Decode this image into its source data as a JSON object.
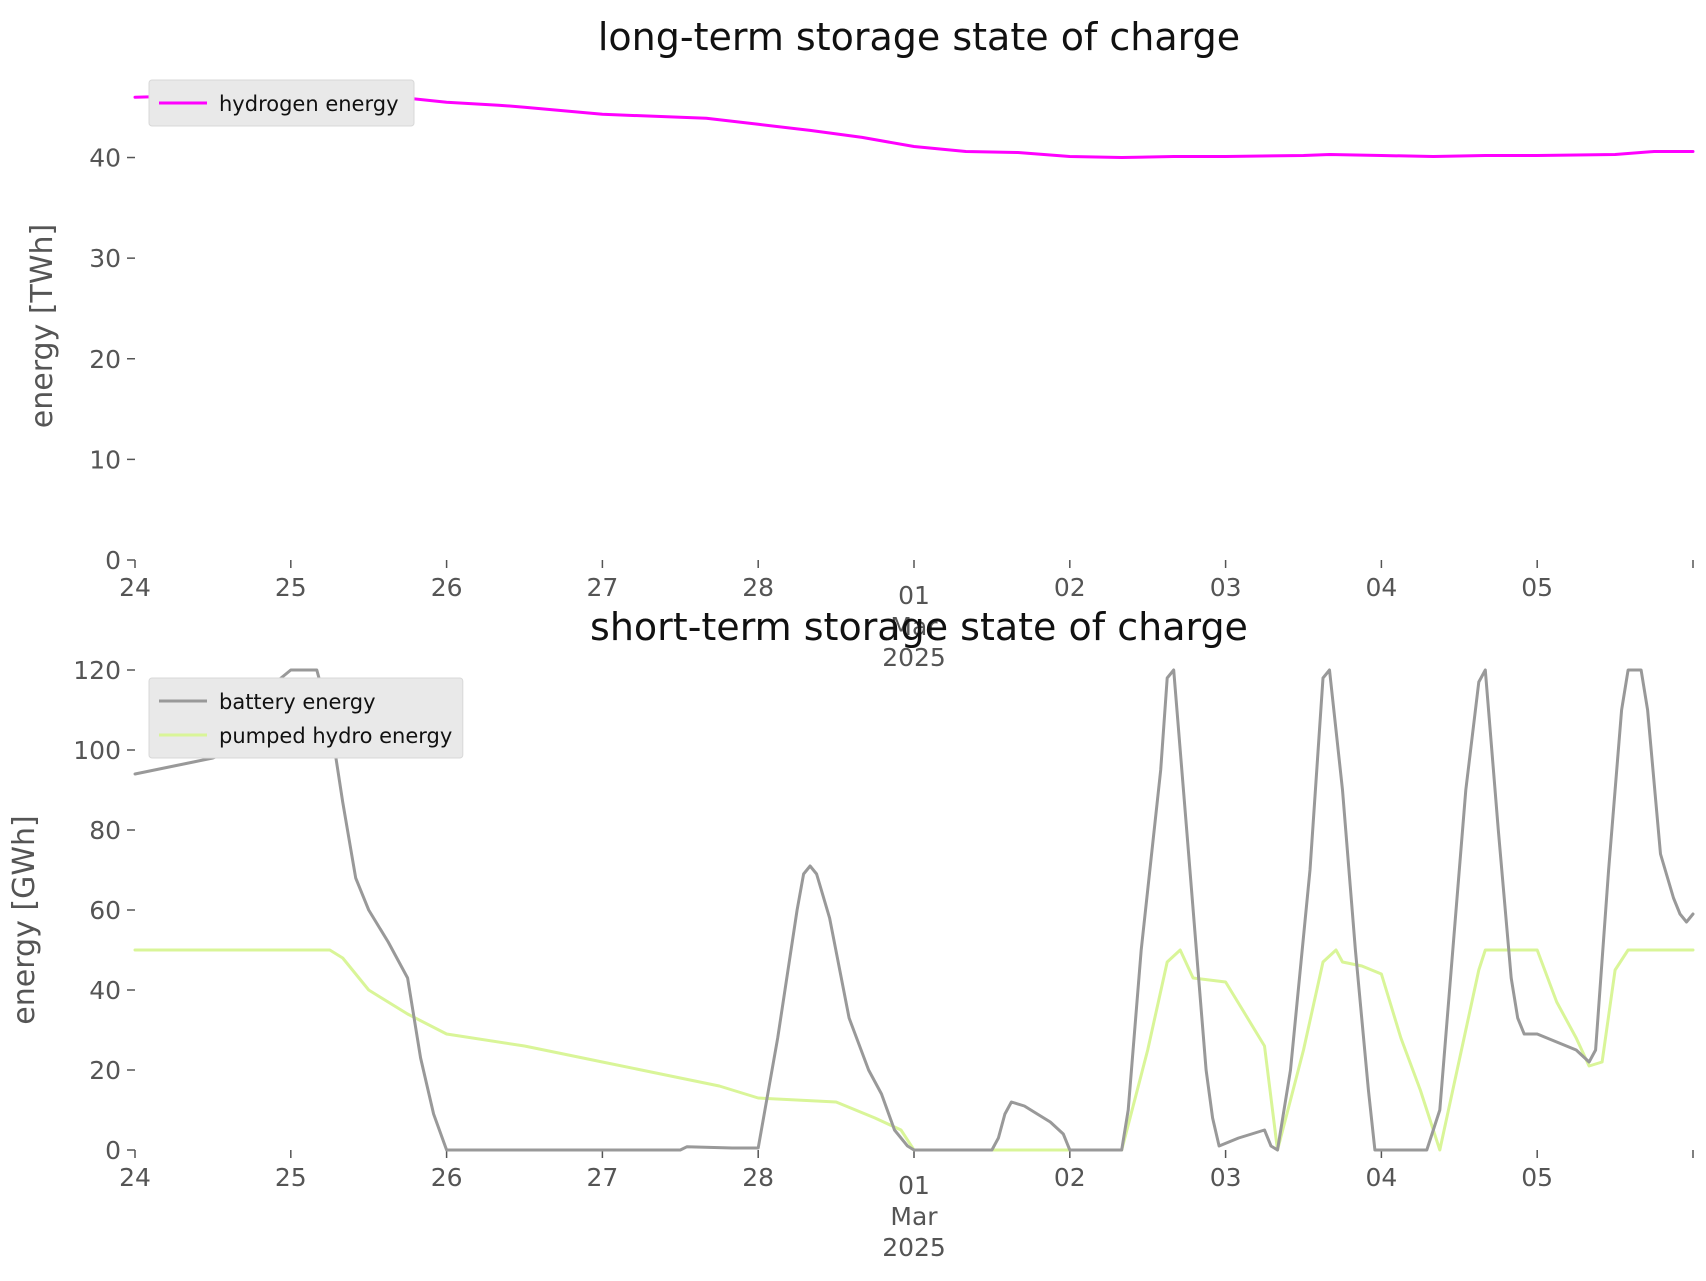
{
  "chart_data": [
    {
      "type": "line",
      "title": "long-term storage state of charge",
      "ylabel": "energy [TWh]",
      "xlabel": "",
      "ylim": [
        0,
        48.5
      ],
      "yticks": [
        0,
        10,
        20,
        30,
        40
      ],
      "xlim": [
        "2025-02-24 00:00",
        "2025-03-06 00:00"
      ],
      "xticks": [
        {
          "date": "2025-02-24",
          "label": "24"
        },
        {
          "date": "2025-02-25",
          "label": "25"
        },
        {
          "date": "2025-02-26",
          "label": "26"
        },
        {
          "date": "2025-02-27",
          "label": "27"
        },
        {
          "date": "2025-02-28",
          "label": "28"
        },
        {
          "date": "2025-03-01",
          "label": "01",
          "sublabel": "Mar",
          "sublabel2": "2025"
        },
        {
          "date": "2025-03-02",
          "label": "02"
        },
        {
          "date": "2025-03-03",
          "label": "03"
        },
        {
          "date": "2025-03-04",
          "label": "04"
        },
        {
          "date": "2025-03-05",
          "label": "05"
        },
        {
          "date": "2025-03-06",
          "label": ""
        }
      ],
      "grid": false,
      "legend_position": "top-left",
      "series": [
        {
          "name": "hydrogen energy",
          "color": "#ff00ff",
          "points": [
            [
              "2025-02-24 00:00",
              46.0
            ],
            [
              "2025-02-24 12:00",
              46.2
            ],
            [
              "2025-02-25 00:00",
              46.4
            ],
            [
              "2025-02-25 12:00",
              46.3
            ],
            [
              "2025-02-26 00:00",
              45.5
            ],
            [
              "2025-02-26 08:00",
              45.2
            ],
            [
              "2025-02-26 12:00",
              45.0
            ],
            [
              "2025-02-27 00:00",
              44.3
            ],
            [
              "2025-02-27 12:00",
              44.0
            ],
            [
              "2025-02-27 16:00",
              43.9
            ],
            [
              "2025-02-28 00:00",
              43.3
            ],
            [
              "2025-02-28 08:00",
              42.7
            ],
            [
              "2025-02-28 16:00",
              42.0
            ],
            [
              "2025-03-01 00:00",
              41.1
            ],
            [
              "2025-03-01 08:00",
              40.6
            ],
            [
              "2025-03-01 16:00",
              40.5
            ],
            [
              "2025-03-02 00:00",
              40.1
            ],
            [
              "2025-03-02 08:00",
              40.0
            ],
            [
              "2025-03-02 16:00",
              40.1
            ],
            [
              "2025-03-03 00:00",
              40.1
            ],
            [
              "2025-03-03 12:00",
              40.2
            ],
            [
              "2025-03-03 16:00",
              40.3
            ],
            [
              "2025-03-04 00:00",
              40.2
            ],
            [
              "2025-03-04 08:00",
              40.1
            ],
            [
              "2025-03-04 16:00",
              40.2
            ],
            [
              "2025-03-05 00:00",
              40.2
            ],
            [
              "2025-03-05 12:00",
              40.3
            ],
            [
              "2025-03-05 18:00",
              40.6
            ],
            [
              "2025-03-06 00:00",
              40.6
            ]
          ]
        }
      ]
    },
    {
      "type": "line",
      "title": "short-term storage state of charge",
      "ylabel": "energy [GWh]",
      "xlabel": "",
      "ylim": [
        0,
        120
      ],
      "yticks": [
        0,
        20,
        40,
        60,
        80,
        100,
        120
      ],
      "xlim": [
        "2025-02-24 00:00",
        "2025-03-06 00:00"
      ],
      "xticks": [
        {
          "date": "2025-02-24",
          "label": "24"
        },
        {
          "date": "2025-02-25",
          "label": "25"
        },
        {
          "date": "2025-02-26",
          "label": "26"
        },
        {
          "date": "2025-02-27",
          "label": "27"
        },
        {
          "date": "2025-02-28",
          "label": "28"
        },
        {
          "date": "2025-03-01",
          "label": "01",
          "sublabel": "Mar",
          "sublabel2": "2025"
        },
        {
          "date": "2025-03-02",
          "label": "02"
        },
        {
          "date": "2025-03-03",
          "label": "03"
        },
        {
          "date": "2025-03-04",
          "label": "04"
        },
        {
          "date": "2025-03-05",
          "label": "05"
        },
        {
          "date": "2025-03-06",
          "label": ""
        }
      ],
      "grid": false,
      "legend_position": "top-left",
      "series": [
        {
          "name": "battery energy",
          "color": "#999999",
          "points": [
            [
              "2025-02-24 00:00",
              94
            ],
            [
              "2025-02-24 03:00",
              95
            ],
            [
              "2025-02-24 06:00",
              96
            ],
            [
              "2025-02-24 09:00",
              97
            ],
            [
              "2025-02-24 12:00",
              98
            ],
            [
              "2025-02-24 15:00",
              100
            ],
            [
              "2025-02-24 18:00",
              108
            ],
            [
              "2025-02-24 21:00",
              116
            ],
            [
              "2025-02-25 00:00",
              120
            ],
            [
              "2025-02-25 04:00",
              120
            ],
            [
              "2025-02-25 06:00",
              108
            ],
            [
              "2025-02-25 08:00",
              87
            ],
            [
              "2025-02-25 10:00",
              68
            ],
            [
              "2025-02-25 12:00",
              60
            ],
            [
              "2025-02-25 15:00",
              52
            ],
            [
              "2025-02-25 18:00",
              43
            ],
            [
              "2025-02-25 20:00",
              23
            ],
            [
              "2025-02-25 22:00",
              9
            ],
            [
              "2025-02-26 00:00",
              0
            ],
            [
              "2025-02-27 12:00",
              0
            ],
            [
              "2025-02-27 13:00",
              0.8
            ],
            [
              "2025-02-27 20:00",
              0.5
            ],
            [
              "2025-02-28 00:00",
              0.5
            ],
            [
              "2025-02-28 03:00",
              28
            ],
            [
              "2025-02-28 06:00",
              60
            ],
            [
              "2025-02-28 07:00",
              69
            ],
            [
              "2025-02-28 08:00",
              71
            ],
            [
              "2025-02-28 09:00",
              69
            ],
            [
              "2025-02-28 11:00",
              58
            ],
            [
              "2025-02-28 14:00",
              33
            ],
            [
              "2025-02-28 17:00",
              20
            ],
            [
              "2025-02-28 19:00",
              14
            ],
            [
              "2025-02-28 21:00",
              5
            ],
            [
              "2025-02-28 23:00",
              1
            ],
            [
              "2025-03-01 00:00",
              0
            ],
            [
              "2025-03-01 12:00",
              0
            ],
            [
              "2025-03-01 13:00",
              3
            ],
            [
              "2025-03-01 14:00",
              9
            ],
            [
              "2025-03-01 15:00",
              12
            ],
            [
              "2025-03-01 17:00",
              11
            ],
            [
              "2025-03-01 19:00",
              9
            ],
            [
              "2025-03-01 21:00",
              7
            ],
            [
              "2025-03-01 23:00",
              4
            ],
            [
              "2025-03-02 00:00",
              0
            ],
            [
              "2025-03-02 08:00",
              0
            ],
            [
              "2025-03-02 09:00",
              10
            ],
            [
              "2025-03-02 11:00",
              50
            ],
            [
              "2025-03-02 14:00",
              95
            ],
            [
              "2025-03-02 15:00",
              118
            ],
            [
              "2025-03-02 16:00",
              120
            ],
            [
              "2025-03-02 18:00",
              80
            ],
            [
              "2025-03-02 20:00",
              40
            ],
            [
              "2025-03-02 21:00",
              20
            ],
            [
              "2025-03-02 22:00",
              8
            ],
            [
              "2025-03-02 23:00",
              1
            ],
            [
              "2025-03-03 02:00",
              3
            ],
            [
              "2025-03-03 04:00",
              4
            ],
            [
              "2025-03-03 06:00",
              5
            ],
            [
              "2025-03-03 07:00",
              1
            ],
            [
              "2025-03-03 08:00",
              0
            ],
            [
              "2025-03-03 10:00",
              20
            ],
            [
              "2025-03-03 13:00",
              70
            ],
            [
              "2025-03-03 15:00",
              118
            ],
            [
              "2025-03-03 16:00",
              120
            ],
            [
              "2025-03-03 18:00",
              90
            ],
            [
              "2025-03-03 20:00",
              50
            ],
            [
              "2025-03-03 22:00",
              15
            ],
            [
              "2025-03-03 23:00",
              0
            ],
            [
              "2025-03-04 07:00",
              0
            ],
            [
              "2025-03-04 09:00",
              10
            ],
            [
              "2025-03-04 11:00",
              50
            ],
            [
              "2025-03-04 13:00",
              90
            ],
            [
              "2025-03-04 15:00",
              117
            ],
            [
              "2025-03-04 16:00",
              120
            ],
            [
              "2025-03-04 18:00",
              80
            ],
            [
              "2025-03-04 20:00",
              43
            ],
            [
              "2025-03-04 21:00",
              33
            ],
            [
              "2025-03-04 22:00",
              29
            ],
            [
              "2025-03-05 00:00",
              29
            ],
            [
              "2025-03-05 03:00",
              27
            ],
            [
              "2025-03-05 06:00",
              25
            ],
            [
              "2025-03-05 08:00",
              22
            ],
            [
              "2025-03-05 09:00",
              25
            ],
            [
              "2025-03-05 11:00",
              70
            ],
            [
              "2025-03-05 13:00",
              110
            ],
            [
              "2025-03-05 14:00",
              120
            ],
            [
              "2025-03-05 16:00",
              120
            ],
            [
              "2025-03-05 17:00",
              110
            ],
            [
              "2025-03-05 19:00",
              74
            ],
            [
              "2025-03-05 21:00",
              63
            ],
            [
              "2025-03-05 22:00",
              59
            ],
            [
              "2025-03-05 23:00",
              57
            ],
            [
              "2025-03-06 00:00",
              59
            ]
          ]
        },
        {
          "name": "pumped hydro energy",
          "color": "#d9f598",
          "points": [
            [
              "2025-02-24 00:00",
              50
            ],
            [
              "2025-02-25 06:00",
              50
            ],
            [
              "2025-02-25 08:00",
              48
            ],
            [
              "2025-02-25 12:00",
              40
            ],
            [
              "2025-02-25 18:00",
              34
            ],
            [
              "2025-02-26 00:00",
              29
            ],
            [
              "2025-02-26 12:00",
              26
            ],
            [
              "2025-02-26 18:00",
              24
            ],
            [
              "2025-02-27 00:00",
              22
            ],
            [
              "2025-02-27 12:00",
              18
            ],
            [
              "2025-02-27 18:00",
              16
            ],
            [
              "2025-02-28 00:00",
              13
            ],
            [
              "2025-02-28 12:00",
              12
            ],
            [
              "2025-02-28 18:00",
              8
            ],
            [
              "2025-02-28 22:00",
              5
            ],
            [
              "2025-03-01 00:00",
              0
            ],
            [
              "2025-03-02 08:00",
              0
            ],
            [
              "2025-03-02 12:00",
              25
            ],
            [
              "2025-03-02 15:00",
              47
            ],
            [
              "2025-03-02 17:00",
              50
            ],
            [
              "2025-03-02 19:00",
              43
            ],
            [
              "2025-03-03 00:00",
              42
            ],
            [
              "2025-03-03 03:00",
              34
            ],
            [
              "2025-03-03 06:00",
              26
            ],
            [
              "2025-03-03 08:00",
              0
            ],
            [
              "2025-03-03 12:00",
              25
            ],
            [
              "2025-03-03 15:00",
              47
            ],
            [
              "2025-03-03 17:00",
              50
            ],
            [
              "2025-03-03 18:00",
              47
            ],
            [
              "2025-03-03 21:00",
              46
            ],
            [
              "2025-03-04 00:00",
              44
            ],
            [
              "2025-03-04 03:00",
              28
            ],
            [
              "2025-03-04 06:00",
              15
            ],
            [
              "2025-03-04 09:00",
              0
            ],
            [
              "2025-03-04 13:00",
              30
            ],
            [
              "2025-03-04 15:00",
              45
            ],
            [
              "2025-03-04 16:00",
              50
            ],
            [
              "2025-03-05 00:00",
              50
            ],
            [
              "2025-03-05 03:00",
              37
            ],
            [
              "2025-03-05 06:00",
              28
            ],
            [
              "2025-03-05 08:00",
              21
            ],
            [
              "2025-03-05 10:00",
              22
            ],
            [
              "2025-03-05 12:00",
              45
            ],
            [
              "2025-03-05 14:00",
              50
            ],
            [
              "2025-03-06 00:00",
              50
            ]
          ]
        }
      ]
    }
  ]
}
